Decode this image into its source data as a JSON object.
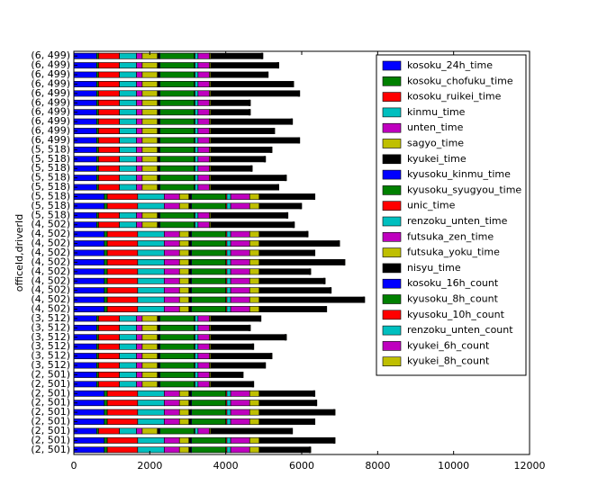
{
  "chart_data": {
    "type": "barh_stacked",
    "ylabel": "officeId,driverId",
    "categories": [
      "(2, 501)",
      "(2, 501)",
      "(2, 501)",
      "(2, 501)",
      "(2, 501)",
      "(2, 501)",
      "(2, 501)",
      "(2, 501)",
      "(2, 501)",
      "(3, 512)",
      "(3, 512)",
      "(3, 512)",
      "(3, 512)",
      "(3, 512)",
      "(3, 512)",
      "(4, 502)",
      "(4, 502)",
      "(4, 502)",
      "(4, 502)",
      "(4, 502)",
      "(4, 502)",
      "(4, 502)",
      "(4, 502)",
      "(4, 502)",
      "(4, 502)",
      "(5, 518)",
      "(5, 518)",
      "(5, 518)",
      "(5, 518)",
      "(5, 518)",
      "(5, 518)",
      "(5, 518)",
      "(5, 518)",
      "(6, 499)",
      "(6, 499)",
      "(6, 499)",
      "(6, 499)",
      "(6, 499)",
      "(6, 499)",
      "(6, 499)",
      "(6, 499)",
      "(6, 499)",
      "(6, 499)"
    ],
    "xlim": [
      0,
      12000
    ],
    "xticks": [
      0,
      2000,
      4000,
      6000,
      8000,
      10000,
      12000
    ],
    "legend": "upper right",
    "series": [
      {
        "name": "kosoku_24h_time",
        "color": "#0000ff",
        "values": [
          800,
          800,
          600,
          800,
          800,
          800,
          800,
          600,
          600,
          600,
          600,
          600,
          600,
          600,
          600,
          800,
          800,
          800,
          800,
          800,
          800,
          800,
          800,
          800,
          600,
          600,
          800,
          800,
          600,
          600,
          600,
          600,
          600,
          600,
          600,
          600,
          600,
          600,
          600,
          600,
          600,
          600,
          600
        ]
      },
      {
        "name": "kosoku_chofuku_time",
        "color": "#008000",
        "values": [
          80,
          80,
          50,
          80,
          80,
          80,
          80,
          50,
          50,
          50,
          50,
          50,
          50,
          50,
          50,
          80,
          80,
          80,
          80,
          80,
          80,
          80,
          80,
          80,
          50,
          50,
          80,
          80,
          50,
          50,
          50,
          50,
          50,
          50,
          50,
          50,
          50,
          50,
          50,
          50,
          50,
          50,
          50
        ]
      },
      {
        "name": "kosoku_ruikei_time",
        "color": "#ff0000",
        "values": [
          800,
          800,
          550,
          800,
          800,
          800,
          800,
          550,
          550,
          550,
          550,
          550,
          550,
          550,
          550,
          800,
          800,
          800,
          800,
          800,
          800,
          800,
          800,
          800,
          550,
          550,
          800,
          800,
          550,
          550,
          550,
          550,
          550,
          550,
          550,
          550,
          550,
          550,
          550,
          550,
          550,
          550,
          550
        ]
      },
      {
        "name": "kinmu_time",
        "color": "#00bfbf",
        "values": [
          700,
          700,
          450,
          700,
          700,
          700,
          700,
          450,
          450,
          450,
          450,
          450,
          450,
          450,
          450,
          700,
          700,
          700,
          700,
          700,
          700,
          700,
          700,
          700,
          450,
          450,
          700,
          700,
          450,
          450,
          450,
          450,
          450,
          450,
          450,
          450,
          450,
          450,
          450,
          450,
          450,
          450,
          450
        ]
      },
      {
        "name": "unten_time",
        "color": "#bf00bf",
        "values": [
          400,
          400,
          150,
          400,
          400,
          400,
          400,
          150,
          150,
          150,
          150,
          150,
          150,
          150,
          150,
          400,
          400,
          400,
          400,
          400,
          400,
          400,
          400,
          400,
          150,
          150,
          400,
          400,
          150,
          150,
          150,
          150,
          150,
          150,
          150,
          150,
          150,
          150,
          150,
          150,
          150,
          150,
          150
        ]
      },
      {
        "name": "sagyo_time",
        "color": "#bfbf00",
        "values": [
          250,
          250,
          400,
          250,
          250,
          250,
          250,
          400,
          400,
          400,
          400,
          400,
          400,
          400,
          400,
          250,
          250,
          250,
          250,
          250,
          250,
          250,
          250,
          250,
          400,
          400,
          250,
          250,
          400,
          400,
          400,
          400,
          400,
          400,
          400,
          400,
          400,
          400,
          400,
          400,
          400,
          400,
          400
        ]
      },
      {
        "name": "kyukei_time",
        "color": "#000000",
        "values": [
          50,
          50,
          50,
          50,
          50,
          50,
          50,
          50,
          50,
          50,
          50,
          50,
          50,
          50,
          50,
          50,
          50,
          50,
          50,
          50,
          50,
          50,
          50,
          50,
          50,
          50,
          50,
          50,
          50,
          50,
          50,
          50,
          50,
          50,
          50,
          50,
          50,
          50,
          50,
          50,
          50,
          50,
          50
        ]
      },
      {
        "name": "kyusoku_kinmu_time",
        "color": "#0000ff",
        "values": [
          20,
          20,
          20,
          20,
          20,
          20,
          20,
          20,
          20,
          20,
          20,
          20,
          20,
          20,
          20,
          20,
          20,
          20,
          20,
          20,
          20,
          20,
          20,
          20,
          20,
          20,
          20,
          20,
          20,
          20,
          20,
          20,
          20,
          20,
          20,
          20,
          20,
          20,
          20,
          20,
          20,
          20,
          20
        ]
      },
      {
        "name": "kyusoku_syugyou_time",
        "color": "#008000",
        "values": [
          900,
          900,
          900,
          900,
          900,
          900,
          900,
          900,
          900,
          900,
          900,
          900,
          900,
          900,
          900,
          900,
          900,
          900,
          900,
          900,
          900,
          900,
          900,
          900,
          900,
          900,
          900,
          900,
          900,
          900,
          900,
          900,
          900,
          900,
          900,
          900,
          900,
          900,
          900,
          900,
          900,
          900,
          900
        ]
      },
      {
        "name": "unic_time",
        "color": "#ff0000",
        "values": [
          30,
          30,
          20,
          30,
          30,
          30,
          30,
          20,
          20,
          20,
          20,
          20,
          20,
          20,
          20,
          30,
          30,
          30,
          30,
          30,
          30,
          30,
          30,
          30,
          20,
          20,
          30,
          30,
          20,
          20,
          20,
          20,
          20,
          20,
          20,
          20,
          20,
          20,
          20,
          20,
          20,
          20,
          20
        ]
      },
      {
        "name": "renzoku_unten_time",
        "color": "#00bfbf",
        "values": [
          100,
          100,
          80,
          100,
          100,
          100,
          100,
          80,
          80,
          80,
          80,
          80,
          80,
          80,
          80,
          100,
          100,
          100,
          100,
          100,
          100,
          100,
          100,
          100,
          80,
          80,
          100,
          100,
          80,
          80,
          80,
          80,
          80,
          80,
          80,
          80,
          80,
          80,
          80,
          80,
          80,
          80,
          80
        ]
      },
      {
        "name": "futsuka_zen_time",
        "color": "#bf00bf",
        "values": [
          500,
          500,
          300,
          500,
          500,
          500,
          500,
          300,
          300,
          300,
          300,
          300,
          300,
          300,
          300,
          500,
          500,
          500,
          500,
          500,
          500,
          500,
          500,
          500,
          300,
          300,
          500,
          500,
          300,
          300,
          300,
          300,
          300,
          300,
          300,
          300,
          300,
          300,
          300,
          300,
          300,
          300,
          300
        ]
      },
      {
        "name": "futsuka_yoku_time",
        "color": "#bfbf00",
        "values": [
          250,
          250,
          30,
          250,
          250,
          250,
          250,
          30,
          30,
          30,
          30,
          30,
          30,
          30,
          30,
          250,
          250,
          250,
          250,
          250,
          250,
          250,
          250,
          250,
          30,
          30,
          250,
          250,
          30,
          30,
          30,
          30,
          30,
          30,
          30,
          30,
          30,
          30,
          30,
          30,
          30,
          30,
          30
        ]
      },
      {
        "name": "nisyu_time",
        "color": "#000000",
        "values": [
          1315,
          1955,
          2115,
          1425,
          1955,
          1475,
          1425,
          1095,
          815,
          1405,
          1575,
          1095,
          1955,
          1005,
          1285,
          1735,
          2735,
          1855,
          1695,
          1315,
          2215,
          1425,
          2075,
          1245,
          2165,
          1995,
          1075,
          1425,
          1755,
          1955,
          1055,
          1405,
          1575,
          2305,
          1645,
          2115,
          1005,
          1005,
          2305,
          2145,
          1475,
          1755,
          1335
        ]
      },
      {
        "name": "kosoku_16h_count",
        "color": "#0000ff",
        "values": [
          10,
          10,
          10,
          10,
          10,
          10,
          10,
          10,
          10,
          10,
          10,
          10,
          10,
          10,
          10,
          10,
          10,
          10,
          10,
          10,
          10,
          10,
          10,
          10,
          10,
          10,
          10,
          10,
          10,
          10,
          10,
          10,
          10,
          10,
          10,
          10,
          10,
          10,
          10,
          10,
          10,
          10,
          10
        ]
      },
      {
        "name": "kyusoku_8h_count",
        "color": "#008000",
        "values": [
          5,
          5,
          5,
          5,
          5,
          5,
          5,
          5,
          5,
          5,
          5,
          5,
          5,
          5,
          5,
          5,
          5,
          5,
          5,
          5,
          5,
          5,
          5,
          5,
          5,
          5,
          5,
          5,
          5,
          5,
          5,
          5,
          5,
          5,
          5,
          5,
          5,
          5,
          5,
          5,
          5,
          5,
          5
        ]
      },
      {
        "name": "kyusoku_10h_count",
        "color": "#ff0000",
        "values": [
          10,
          10,
          10,
          10,
          10,
          10,
          10,
          10,
          10,
          10,
          10,
          10,
          10,
          10,
          10,
          10,
          10,
          10,
          10,
          10,
          10,
          10,
          10,
          10,
          10,
          10,
          10,
          10,
          10,
          10,
          10,
          10,
          10,
          10,
          10,
          10,
          10,
          10,
          10,
          10,
          10,
          10,
          10
        ]
      },
      {
        "name": "renzoku_unten_count",
        "color": "#00bfbf",
        "values": [
          5,
          5,
          5,
          5,
          5,
          5,
          5,
          5,
          5,
          5,
          5,
          5,
          5,
          5,
          5,
          5,
          5,
          5,
          5,
          5,
          5,
          5,
          5,
          5,
          5,
          5,
          5,
          5,
          5,
          5,
          5,
          5,
          5,
          5,
          5,
          5,
          5,
          5,
          5,
          5,
          5,
          5,
          5
        ]
      },
      {
        "name": "kyukei_6h_count",
        "color": "#bf00bf",
        "values": [
          10,
          10,
          10,
          10,
          10,
          10,
          10,
          10,
          10,
          10,
          10,
          10,
          10,
          10,
          10,
          10,
          10,
          10,
          10,
          10,
          10,
          10,
          10,
          10,
          10,
          10,
          10,
          10,
          10,
          10,
          10,
          10,
          10,
          10,
          10,
          10,
          10,
          10,
          10,
          10,
          10,
          10,
          10
        ]
      },
      {
        "name": "kyukei_8h_count",
        "color": "#bfbf00",
        "values": [
          5,
          5,
          5,
          5,
          5,
          5,
          5,
          5,
          5,
          5,
          5,
          5,
          5,
          5,
          5,
          5,
          5,
          5,
          5,
          5,
          5,
          5,
          5,
          5,
          5,
          5,
          5,
          5,
          5,
          5,
          5,
          5,
          5,
          5,
          5,
          5,
          5,
          5,
          5,
          5,
          5,
          5,
          5
        ]
      }
    ]
  }
}
